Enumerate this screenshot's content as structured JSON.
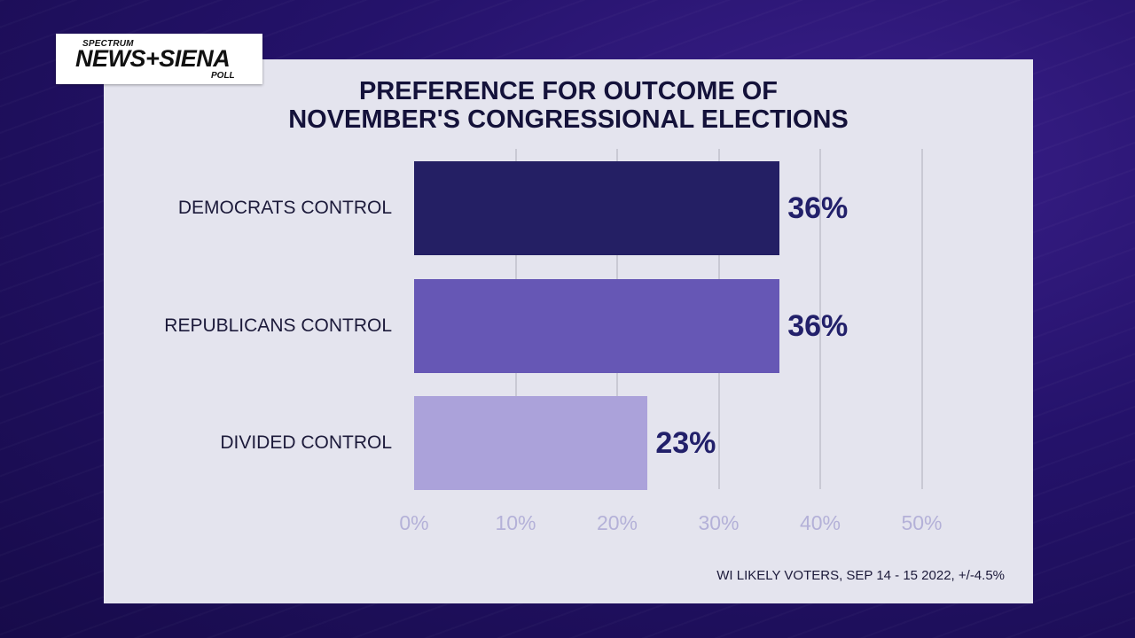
{
  "logo": {
    "top": "SPECTRUM",
    "main": "NEWS+SIENA",
    "bottom": "POLL"
  },
  "title_lines": [
    "PREFERENCE FOR OUTCOME OF",
    "NOVEMBER'S CONGRESSIONAL ELECTIONS"
  ],
  "footnote": "WI LIKELY VOTERS, SEP 14 - 15 2022, +/-4.5%",
  "chart_data": {
    "type": "bar",
    "orientation": "horizontal",
    "title": "PREFERENCE FOR OUTCOME OF NOVEMBER'S CONGRESSIONAL ELECTIONS",
    "categories": [
      "DEMOCRATS CONTROL",
      "REPUBLICANS CONTROL",
      "DIVIDED CONTROL"
    ],
    "values": [
      36,
      36,
      23
    ],
    "value_labels": [
      "36%",
      "36%",
      "23%"
    ],
    "bar_colors": [
      "#241f64",
      "#6657b5",
      "#aba2da"
    ],
    "xlim": [
      0,
      50
    ],
    "xticks": [
      0,
      10,
      20,
      30,
      40,
      50
    ],
    "xtick_labels": [
      "0%",
      "10%",
      "20%",
      "30%",
      "40%",
      "50%"
    ],
    "grid": true,
    "legend": "none"
  }
}
